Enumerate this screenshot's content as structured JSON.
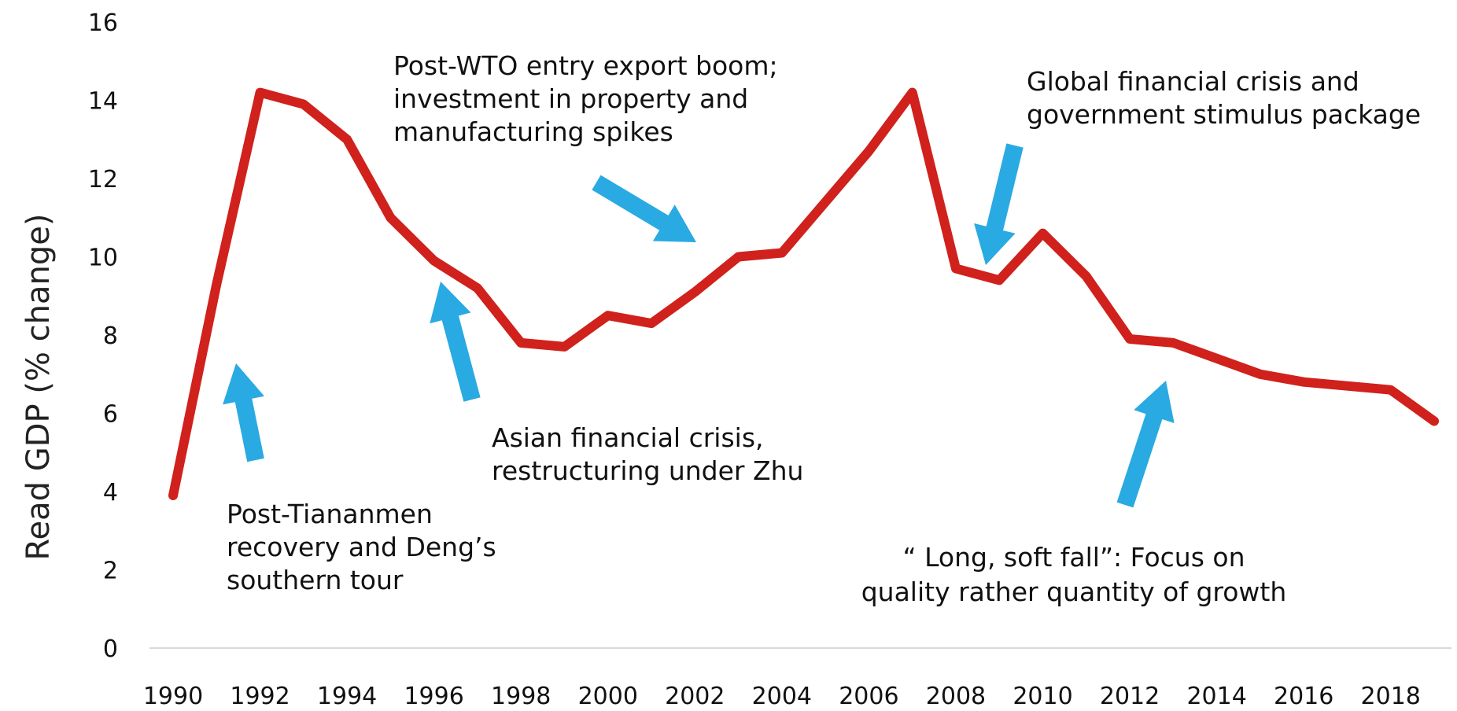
{
  "chart_data": {
    "type": "line",
    "ylabel": "Read GDP (% change)",
    "xlabel": "",
    "ylim": [
      0,
      16
    ],
    "yticks": [
      0,
      2,
      4,
      6,
      8,
      10,
      12,
      14,
      16
    ],
    "xlim": [
      1990,
      2019
    ],
    "xticks": [
      1990,
      1992,
      1994,
      1996,
      1998,
      2000,
      2002,
      2004,
      2006,
      2008,
      2010,
      2012,
      2014,
      2016,
      2018
    ],
    "grid": false,
    "legend": "none",
    "series": [
      {
        "color": "#d0211c",
        "x": [
          1990,
          1991,
          1992,
          1993,
          1994,
          1995,
          1996,
          1997,
          1998,
          1999,
          2000,
          2001,
          2002,
          2003,
          2004,
          2005,
          2006,
          2007,
          2008,
          2009,
          2010,
          2011,
          2012,
          2013,
          2014,
          2015,
          2016,
          2017,
          2018,
          2019
        ],
        "values": [
          3.9,
          9.3,
          14.2,
          13.9,
          13.0,
          11.0,
          9.9,
          9.2,
          7.8,
          7.7,
          8.5,
          8.3,
          9.1,
          10.0,
          10.1,
          11.4,
          12.7,
          14.2,
          9.7,
          9.4,
          10.6,
          9.5,
          7.9,
          7.8,
          7.4,
          7.0,
          6.8,
          6.7,
          6.6,
          5.8
        ]
      }
    ],
    "annotations": [
      {
        "lines": [
          "Post-Tiananmen",
          "recovery and Deng’s",
          "southern tour"
        ],
        "arrow_color": "#29aae2"
      },
      {
        "lines": [
          "Asian financial crisis,",
          "restructuring under Zhu"
        ],
        "arrow_color": "#29aae2"
      },
      {
        "lines": [
          "Post-WTO entry export boom;",
          "investment in property and",
          "manufacturing spikes"
        ],
        "arrow_color": "#29aae2"
      },
      {
        "lines": [
          "Global financial crisis and",
          "government stimulus package"
        ],
        "arrow_color": "#29aae2"
      },
      {
        "lines": [
          "“ Long, soft fall”: Focus on",
          "quality rather quantity of growth"
        ],
        "arrow_color": "#29aae2"
      }
    ]
  }
}
